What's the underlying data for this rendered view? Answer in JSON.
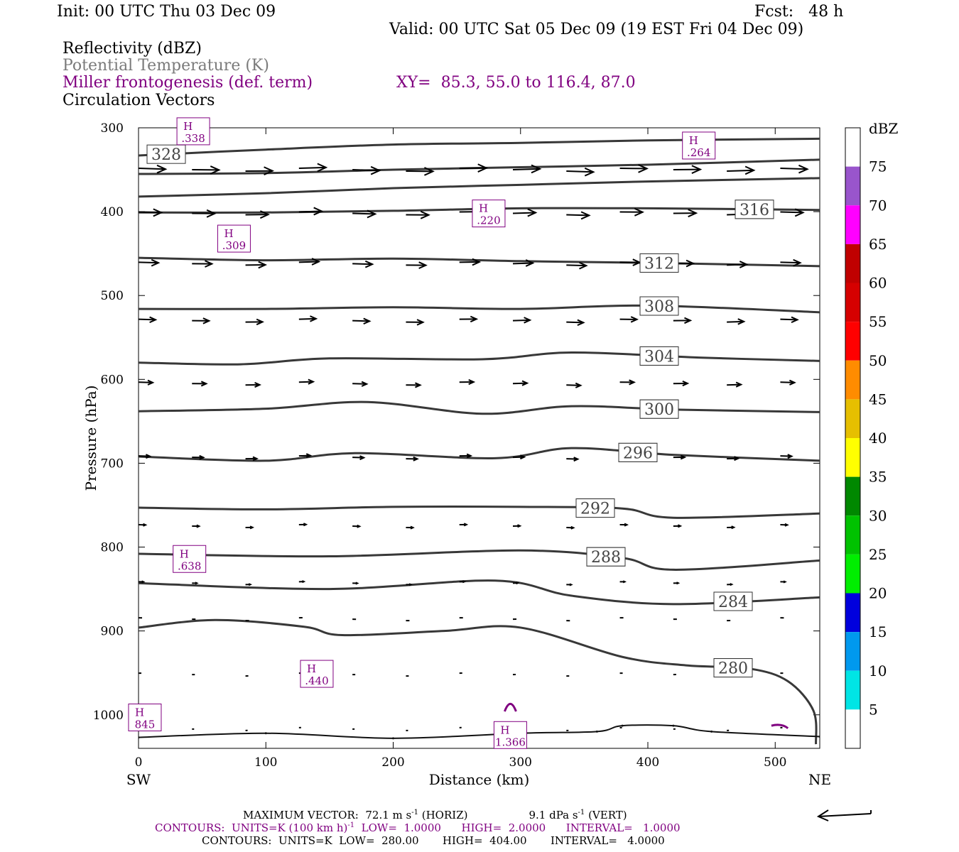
{
  "header": {
    "init": "Init: 00 UTC Thu 03 Dec 09",
    "fcst": "Fcst:   48 h",
    "valid": "Valid: 00 UTC Sat 05 Dec 09 (19 EST Fri 04 Dec 09)",
    "field1": "Reflectivity (dBZ)",
    "field2": "Potential Temperature (K)",
    "field3": "Miller frontogenesis (def. term)",
    "xy": "XY=  85.3, 55.0 to 116.4, 87.0",
    "field4": "Circulation Vectors"
  },
  "footer": {
    "max_vector_a": "MAXIMUM VECTOR:  72.1 m s",
    "max_vector_b": " (HORIZ)",
    "max_vector_c": "9.1 dPa s",
    "max_vector_d": " (VERT)",
    "sup": "-1",
    "contours1_a": "CONTOURS:  UNITS=K (100 km h)",
    "contours1_b": "  LOW=  1.0000      HIGH=  2.0000      INTERVAL=   1.0000",
    "contours2": "CONTOURS:  UNITS=K  LOW=  280.00       HIGH=  404.00       INTERVAL=   4.0000"
  },
  "chart_data": {
    "type": "line",
    "xlabel": "Distance (km)",
    "ylabel": "Pressure (hPa)",
    "xlim": [
      0,
      535
    ],
    "ylim": [
      1040,
      300
    ],
    "xticks": [
      0,
      100,
      200,
      300,
      400,
      500
    ],
    "yticks": [
      300,
      400,
      500,
      600,
      700,
      800,
      900,
      1000
    ],
    "x_end_labels": {
      "left": "SW",
      "right": "NE"
    },
    "colorbar": {
      "unit": "dBZ",
      "levels": [
        5,
        10,
        15,
        20,
        25,
        30,
        35,
        40,
        45,
        50,
        55,
        60,
        65,
        70,
        75
      ],
      "colors": [
        "#ffffff",
        "#00e5e5",
        "#0099ee",
        "#0000dd",
        "#00ee00",
        "#00c200",
        "#008800",
        "#ffff00",
        "#e6bf00",
        "#ff8c00",
        "#ff0000",
        "#d60000",
        "#c00000",
        "#ff00ff",
        "#9955cc",
        "#ffffff"
      ]
    },
    "theta_contours": [
      {
        "label": "328",
        "points": [
          [
            0,
            333
          ],
          [
            100,
            326
          ],
          [
            200,
            320
          ],
          [
            300,
            318
          ],
          [
            400,
            315
          ],
          [
            535,
            313
          ]
        ]
      },
      {
        "label": "",
        "points": [
          [
            0,
            355
          ],
          [
            100,
            354
          ],
          [
            200,
            350
          ],
          [
            300,
            347
          ],
          [
            400,
            344
          ],
          [
            535,
            338
          ]
        ]
      },
      {
        "label": "",
        "points": [
          [
            0,
            382
          ],
          [
            100,
            378
          ],
          [
            200,
            372
          ],
          [
            300,
            368
          ],
          [
            400,
            364
          ],
          [
            535,
            360
          ]
        ]
      },
      {
        "label": "316",
        "points": [
          [
            0,
            401
          ],
          [
            100,
            401
          ],
          [
            200,
            399
          ],
          [
            300,
            396
          ],
          [
            400,
            396
          ],
          [
            535,
            398
          ]
        ]
      },
      {
        "label": "312",
        "points": [
          [
            0,
            455
          ],
          [
            100,
            458
          ],
          [
            200,
            456
          ],
          [
            300,
            459
          ],
          [
            400,
            461
          ],
          [
            535,
            465
          ]
        ]
      },
      {
        "label": "308",
        "points": [
          [
            0,
            516
          ],
          [
            100,
            516
          ],
          [
            200,
            514
          ],
          [
            300,
            516
          ],
          [
            400,
            512
          ],
          [
            535,
            520
          ]
        ]
      },
      {
        "label": "304",
        "points": [
          [
            0,
            580
          ],
          [
            80,
            582
          ],
          [
            150,
            575
          ],
          [
            270,
            576
          ],
          [
            340,
            568
          ],
          [
            440,
            574
          ],
          [
            535,
            578
          ]
        ]
      },
      {
        "label": "300",
        "points": [
          [
            0,
            638
          ],
          [
            100,
            635
          ],
          [
            180,
            627
          ],
          [
            270,
            641
          ],
          [
            340,
            632
          ],
          [
            420,
            636
          ],
          [
            535,
            639
          ]
        ]
      },
      {
        "label": "296",
        "points": [
          [
            0,
            692
          ],
          [
            100,
            697
          ],
          [
            170,
            688
          ],
          [
            280,
            694
          ],
          [
            340,
            682
          ],
          [
            420,
            690
          ],
          [
            535,
            697
          ]
        ]
      },
      {
        "label": "292",
        "points": [
          [
            0,
            753
          ],
          [
            100,
            755
          ],
          [
            200,
            752
          ],
          [
            300,
            752
          ],
          [
            380,
            754
          ],
          [
            420,
            765
          ],
          [
            535,
            760
          ]
        ]
      },
      {
        "label": "288",
        "points": [
          [
            0,
            808
          ],
          [
            150,
            811
          ],
          [
            300,
            804
          ],
          [
            380,
            813
          ],
          [
            420,
            827
          ],
          [
            535,
            816
          ]
        ]
      },
      {
        "label": "284",
        "points": [
          [
            0,
            843
          ],
          [
            150,
            850
          ],
          [
            280,
            840
          ],
          [
            340,
            858
          ],
          [
            420,
            868
          ],
          [
            535,
            860
          ]
        ]
      },
      {
        "label": "280",
        "points": [
          [
            0,
            896
          ],
          [
            60,
            887
          ],
          [
            130,
            895
          ],
          [
            160,
            905
          ],
          [
            240,
            900
          ],
          [
            300,
            896
          ],
          [
            380,
            931
          ],
          [
            430,
            941
          ],
          [
            480,
            945
          ],
          [
            510,
            960
          ],
          [
            530,
            995
          ],
          [
            532,
            1035
          ]
        ]
      }
    ],
    "surface_line": [
      [
        0,
        1027
      ],
      [
        100,
        1022
      ],
      [
        200,
        1028
      ],
      [
        300,
        1022
      ],
      [
        360,
        1020
      ],
      [
        380,
        1013
      ],
      [
        420,
        1013
      ],
      [
        450,
        1020
      ],
      [
        535,
        1026
      ]
    ],
    "vector_rows": [
      {
        "p": 350,
        "len": 38
      },
      {
        "p": 402,
        "len": 32
      },
      {
        "p": 462,
        "len": 28
      },
      {
        "p": 530,
        "len": 24
      },
      {
        "p": 605,
        "len": 20
      },
      {
        "p": 693,
        "len": 16
      },
      {
        "p": 775,
        "len": 10
      },
      {
        "p": 843,
        "len": 7
      },
      {
        "p": 886,
        "len": 5
      },
      {
        "p": 952,
        "len": 4
      },
      {
        "p": 1017,
        "len": 3
      }
    ],
    "frontogenesis_maxima": [
      {
        "label": "H",
        "value": ".338",
        "x": 43,
        "p": 305
      },
      {
        "label": "H",
        "value": ".264",
        "x": 440,
        "p": 322
      },
      {
        "label": "H",
        "value": ".220",
        "x": 275,
        "p": 403
      },
      {
        "label": "H",
        "value": ".309",
        "x": 75,
        "p": 433
      },
      {
        "label": "H",
        "value": ".638",
        "x": 40,
        "p": 815
      },
      {
        "label": "H",
        "value": ".440",
        "x": 140,
        "p": 952
      },
      {
        "label": "H",
        "value": "845",
        "x": 5,
        "p": 1004
      },
      {
        "label": "H",
        "value": "1.366",
        "x": 292,
        "p": 1025
      }
    ]
  }
}
